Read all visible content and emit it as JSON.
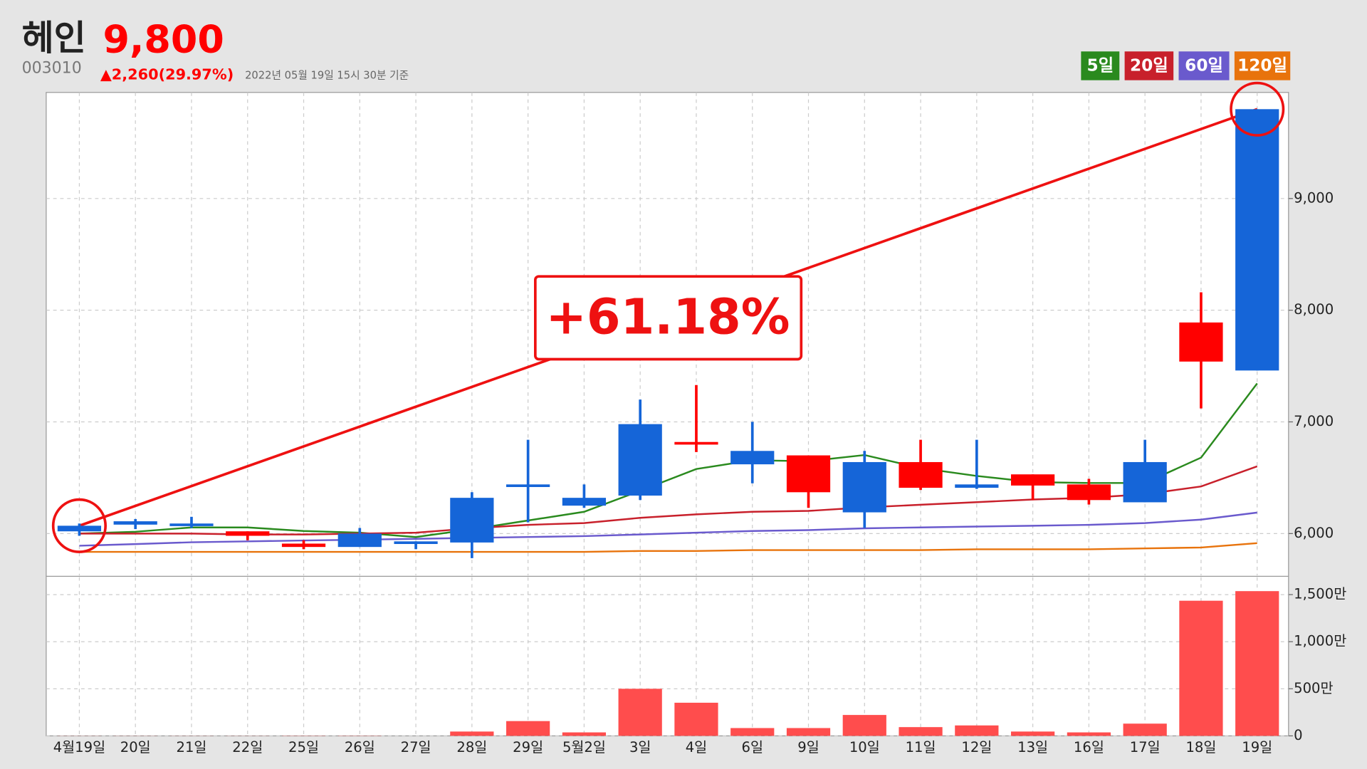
{
  "chart_data": {
    "type": "candlestick",
    "title": "헤인",
    "price": "9,800",
    "code": "003010",
    "change": "▲2,260(29.97%)",
    "timestamp": "2022년 05월 19일 15시 30분 기준",
    "categories": [
      "4월19일",
      "20일",
      "21일",
      "22일",
      "25일",
      "26일",
      "27일",
      "28일",
      "29일",
      "5월2일",
      "3일",
      "4일",
      "6일",
      "9일",
      "10일",
      "11일",
      "12일",
      "13일",
      "16일",
      "17일",
      "18일",
      "19일"
    ],
    "open": [
      6020,
      6080,
      6080,
      6020,
      5910,
      5880,
      5920,
      5920,
      6430,
      6250,
      6340,
      6820,
      6620,
      6700,
      6190,
      6640,
      6410,
      6530,
      6440,
      6280,
      7890,
      7460
    ],
    "high": [
      6090,
      6130,
      6150,
      6020,
      5940,
      6050,
      5930,
      6370,
      6840,
      6440,
      7200,
      7330,
      7000,
      6700,
      6740,
      6840,
      6840,
      6530,
      6490,
      6840,
      8160,
      9800
    ],
    "low": [
      5980,
      6040,
      6050,
      5940,
      5860,
      5880,
      5860,
      5780,
      6100,
      6230,
      6300,
      6730,
      6450,
      6230,
      6050,
      6390,
      6400,
      6300,
      6260,
      6280,
      7120,
      7460
    ],
    "close": [
      6070,
      6110,
      6090,
      5980,
      5880,
      6000,
      5930,
      6320,
      6440,
      6320,
      6980,
      6800,
      6740,
      6370,
      6640,
      6410,
      6440,
      6430,
      6300,
      6640,
      7540,
      9800
    ],
    "up_color": "#1565d8",
    "down_color": "#ff0000",
    "ylim": [
      5625,
      9950
    ],
    "yticks": [
      {
        "value": 6000,
        "label": "6,000"
      },
      {
        "value": 7000,
        "label": "7,000"
      },
      {
        "value": 8000,
        "label": "8,000"
      },
      {
        "value": 9000,
        "label": "9,000"
      }
    ],
    "grid": true,
    "moving_averages": [
      {
        "name": "5일",
        "color": "#2a8a1e",
        "values": [
          6000,
          6016,
          6055,
          6055,
          6023,
          6008,
          5969,
          6039,
          6117,
          6195,
          6383,
          6578,
          6656,
          6648,
          6703,
          6586,
          6516,
          6461,
          6453,
          6453,
          6680,
          7344
        ]
      },
      {
        "name": "20일",
        "color": "#c8202b",
        "values": [
          6000,
          6000,
          6000,
          5992,
          5992,
          6000,
          6008,
          6047,
          6078,
          6094,
          6141,
          6172,
          6195,
          6203,
          6234,
          6258,
          6281,
          6305,
          6320,
          6352,
          6422,
          6602
        ]
      },
      {
        "name": "60일",
        "color": "#6a5acd",
        "values": [
          5891,
          5906,
          5922,
          5930,
          5938,
          5945,
          5953,
          5961,
          5969,
          5977,
          5992,
          6008,
          6023,
          6031,
          6047,
          6055,
          6063,
          6070,
          6078,
          6094,
          6125,
          6188
        ]
      },
      {
        "name": "120일",
        "color": "#e8730c",
        "values": [
          5836,
          5836,
          5836,
          5836,
          5836,
          5836,
          5836,
          5836,
          5836,
          5836,
          5844,
          5844,
          5852,
          5852,
          5852,
          5852,
          5859,
          5859,
          5859,
          5867,
          5875,
          5914
        ]
      }
    ],
    "volume": {
      "color": "#ff4d4d",
      "values": [
        1,
        1,
        1,
        1,
        2,
        2,
        0,
        46,
        157,
        37,
        500,
        352,
        83,
        83,
        222,
        93,
        111,
        46,
        37,
        130,
        1435,
        1537
      ],
      "ylim": [
        0,
        1685
      ],
      "yticks": [
        0,
        {
          "value": 500,
          "label": "500만"
        },
        {
          "value": 1000,
          "label": "1,000만"
        },
        {
          "value": 1500,
          "label": "1,500만"
        }
      ]
    },
    "annotation": "+61.18%"
  }
}
